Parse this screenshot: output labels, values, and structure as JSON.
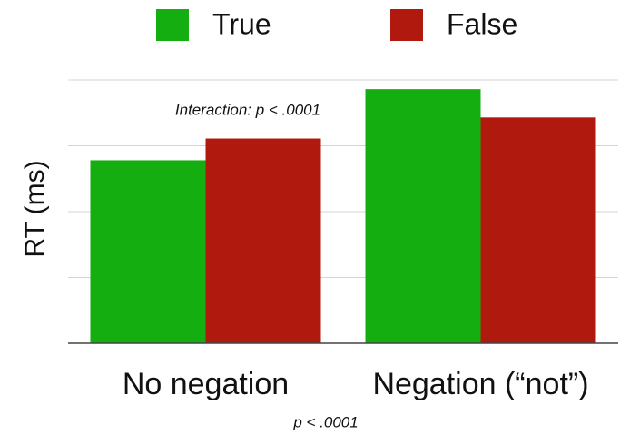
{
  "chart_data": {
    "type": "bar",
    "y_label": "RT (ms)",
    "categories": [
      "No negation",
      "Negation (“not”)"
    ],
    "series": [
      {
        "name": "True",
        "color": "#14ae10",
        "values": [
          2.78,
          3.86
        ]
      },
      {
        "name": "False",
        "color": "#b0190d",
        "values": [
          3.11,
          3.43
        ]
      }
    ],
    "ylim": [
      0,
      4
    ],
    "yticks": [
      0,
      1,
      2,
      3,
      4
    ],
    "grid": true,
    "legend": "top",
    "annotations": [
      "Interaction: p < .0001",
      "p < .0001"
    ]
  }
}
